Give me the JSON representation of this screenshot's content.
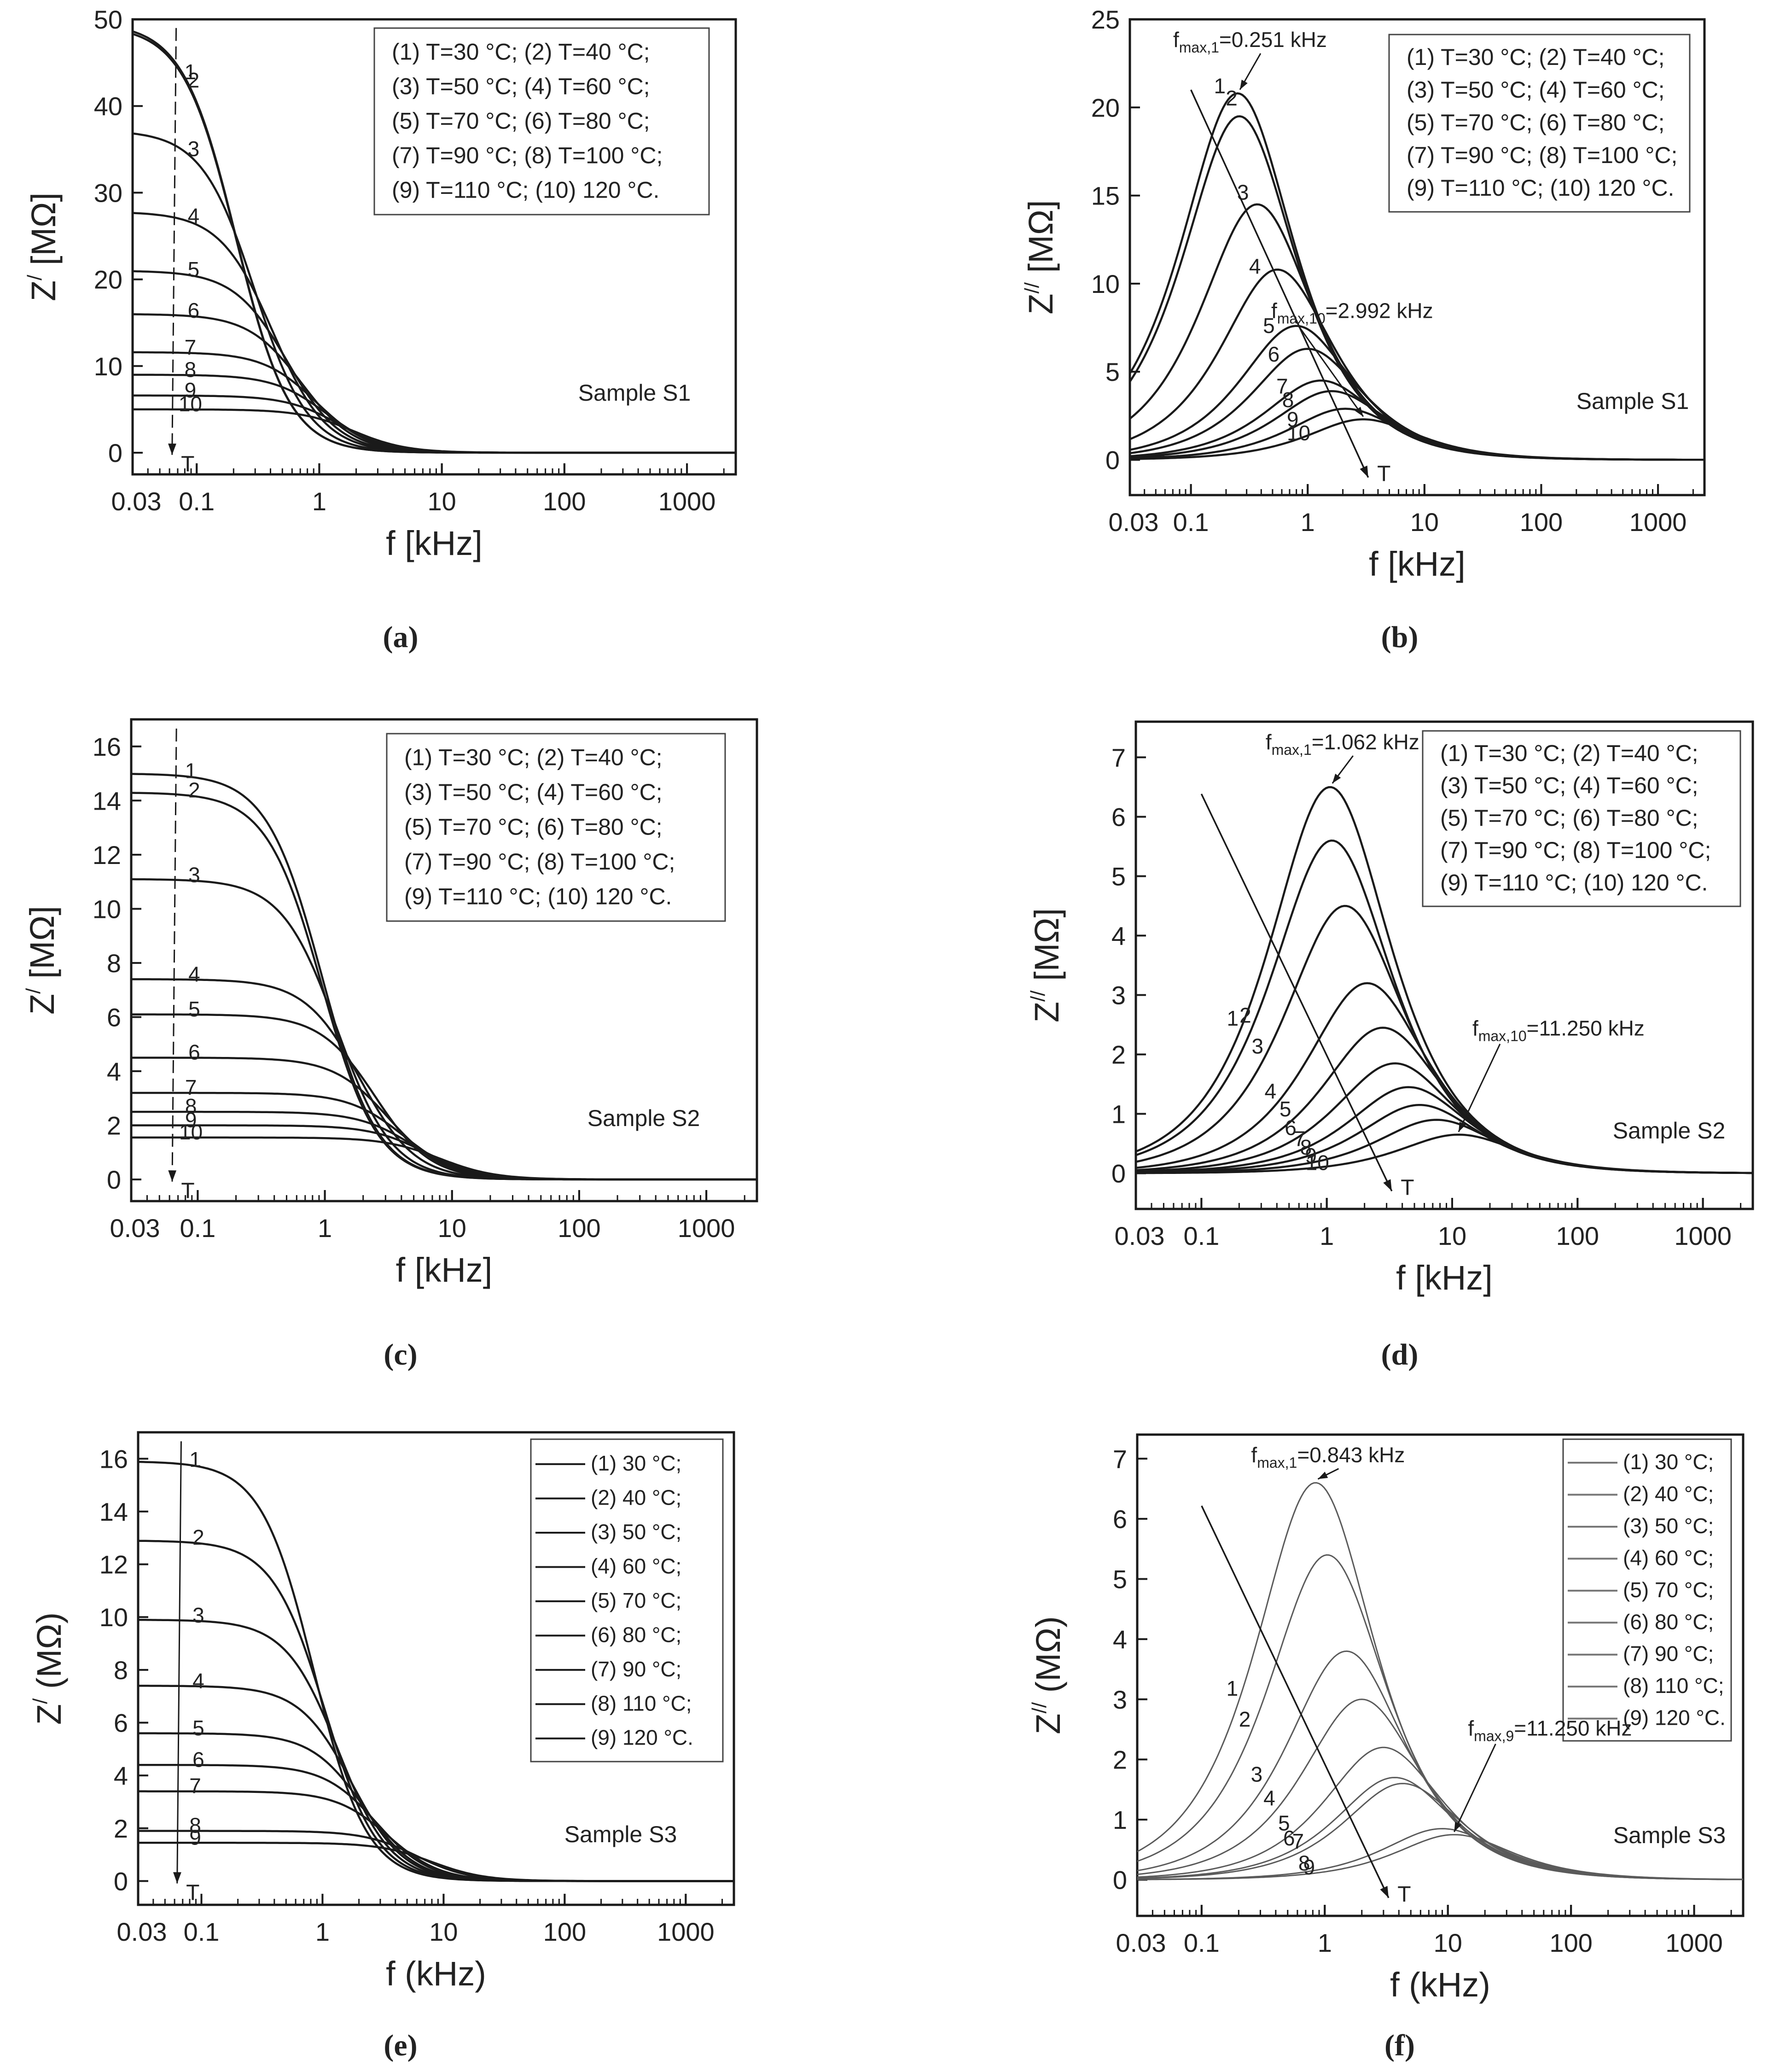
{
  "panels": [
    {
      "id": "a",
      "caption": "(a)",
      "ylabel_main": "Z",
      "ylabel_sup": "/",
      "ylabel_unit": " [MΩ]",
      "xlabel": "f [kHz]",
      "ylim": [
        -2.5,
        50
      ],
      "yticks": [
        "0",
        "10",
        "20",
        "30",
        "40",
        "50"
      ],
      "ytick_values": [
        0,
        10,
        20,
        30,
        40,
        50
      ],
      "xticks": [
        "0.03",
        "0.1",
        "1",
        "10",
        "100",
        "1000"
      ],
      "xtick_values": [
        0.03,
        0.1,
        1,
        10,
        100,
        1000
      ],
      "xlim": [
        0.03,
        2500
      ],
      "sample_label": "Sample S1",
      "legend": [
        "(1) T=30 °C; (2) T=40 °C;",
        "(3) T=50 °C; (4) T=60 °C;",
        "(5) T=70 °C; (6) T=80 °C;",
        "(7) T=90 °C; (8) T=100 °C;",
        "(9) T=110 °C; (10) 120 °C."
      ],
      "curve_labels": [
        "1",
        "2",
        "3",
        "4",
        "5",
        "6",
        "7",
        "8",
        "9",
        "10"
      ],
      "arrow_label": "T",
      "annotations": []
    },
    {
      "id": "b",
      "caption": "(b)",
      "ylabel_main": "Z",
      "ylabel_sup": "//",
      "ylabel_unit": " [MΩ]",
      "xlabel": "f [kHz]",
      "ylim": [
        -2,
        25
      ],
      "yticks": [
        "0",
        "5",
        "10",
        "15",
        "20",
        "25"
      ],
      "ytick_values": [
        0,
        5,
        10,
        15,
        20,
        25
      ],
      "xticks": [
        "0.03",
        "0.1",
        "1",
        "10",
        "100",
        "1000"
      ],
      "xtick_values": [
        0.03,
        0.1,
        1,
        10,
        100,
        1000
      ],
      "xlim": [
        0.03,
        2500
      ],
      "sample_label": "Sample S1",
      "legend": [
        "(1) T=30 °C; (2) T=40 °C;",
        "(3) T=50 °C; (4) T=60 °C;",
        "(5) T=70 °C; (6) T=80 °C;",
        "(7) T=90 °C; (8) T=100 °C;",
        "(9) T=110 °C; (10) 120 °C."
      ],
      "curve_labels": [
        "1",
        "2",
        "3",
        "4",
        "5",
        "6",
        "7",
        "8",
        "9",
        "10"
      ],
      "arrow_label": "T",
      "annotations": [
        {
          "main": "f",
          "sub": "max,1",
          "rest": "=0.251 kHz"
        },
        {
          "main": "f",
          "sub": "max,10",
          "rest": "=2.992 kHz"
        }
      ]
    },
    {
      "id": "c",
      "caption": "(c)",
      "ylabel_main": "Z",
      "ylabel_sup": "/",
      "ylabel_unit": " [MΩ]",
      "xlabel": "f [kHz]",
      "ylim": [
        -0.8,
        17
      ],
      "yticks": [
        "0",
        "2",
        "4",
        "6",
        "8",
        "10",
        "12",
        "14",
        "16"
      ],
      "ytick_values": [
        0,
        2,
        4,
        6,
        8,
        10,
        12,
        14,
        16
      ],
      "xticks": [
        "0.03",
        "0.1",
        "1",
        "10",
        "100",
        "1000"
      ],
      "xtick_values": [
        0.03,
        0.1,
        1,
        10,
        100,
        1000
      ],
      "xlim": [
        0.03,
        2500
      ],
      "sample_label": "Sample S2",
      "legend": [
        "(1) T=30 °C; (2) T=40 °C;",
        "(3) T=50 °C; (4) T=60 °C;",
        "(5) T=70 °C; (6) T=80 °C;",
        "(7) T=90 °C; (8) T=100 °C;",
        "(9) T=110 °C; (10) 120 °C."
      ],
      "curve_labels": [
        "1",
        "2",
        "3",
        "4",
        "5",
        "6",
        "7",
        "8",
        "9",
        "10"
      ],
      "arrow_label": "T",
      "annotations": []
    },
    {
      "id": "d",
      "caption": "(d)",
      "ylabel_main": "Z",
      "ylabel_sup": "//",
      "ylabel_unit": " [MΩ]",
      "xlabel": "f [kHz]",
      "ylim": [
        -0.6,
        7.6
      ],
      "yticks": [
        "0",
        "1",
        "2",
        "3",
        "4",
        "5",
        "6",
        "7"
      ],
      "ytick_values": [
        0,
        1,
        2,
        3,
        4,
        5,
        6,
        7
      ],
      "xticks": [
        "0.03",
        "0.1",
        "1",
        "10",
        "100",
        "1000"
      ],
      "xtick_values": [
        0.03,
        0.1,
        1,
        10,
        100,
        1000
      ],
      "xlim": [
        0.03,
        2500
      ],
      "sample_label": "Sample S2",
      "legend": [
        "(1) T=30 °C; (2) T=40 °C;",
        "(3) T=50 °C; (4) T=60 °C;",
        "(5) T=70 °C; (6) T=80 °C;",
        "(7) T=90 °C; (8) T=100 °C;",
        "(9) T=110 °C; (10) 120 °C."
      ],
      "curve_labels": [
        "1",
        "2",
        "3",
        "4",
        "5",
        "6",
        "7",
        "8",
        "9",
        "10"
      ],
      "arrow_label": "T",
      "annotations": [
        {
          "main": "f",
          "sub": "max,1",
          "rest": "=1.062 kHz"
        },
        {
          "main": "f",
          "sub": "max,10",
          "rest": "=11.250 kHz"
        }
      ]
    },
    {
      "id": "e",
      "caption": "(e)",
      "ylabel_main": "Z",
      "ylabel_sup": "/",
      "ylabel_unit": " (MΩ)",
      "xlabel": "f (kHz)",
      "ylim": [
        -0.9,
        17
      ],
      "yticks": [
        "0",
        "2",
        "4",
        "6",
        "8",
        "10",
        "12",
        "14",
        "16"
      ],
      "ytick_values": [
        0,
        2,
        4,
        6,
        8,
        10,
        12,
        14,
        16
      ],
      "xticks": [
        "0.03",
        "0.1",
        "1",
        "10",
        "100",
        "1000"
      ],
      "xtick_values": [
        0.03,
        0.1,
        1,
        10,
        100,
        1000
      ],
      "xlim": [
        0.03,
        2500
      ],
      "sample_label": "Sample S3",
      "legend": [
        "(1) 30 °C;",
        "(2) 40 °C;",
        "(3) 50 °C;",
        "(4) 60 °C;",
        "(5) 70 °C;",
        "(6) 80 °C;",
        "(7) 90 °C;",
        "(8) 110 °C;",
        "(9) 120 °C."
      ],
      "curve_labels": [
        "1",
        "2",
        "3",
        "4",
        "5",
        "6",
        "7",
        "8",
        "9"
      ],
      "arrow_label": "T",
      "annotations": []
    },
    {
      "id": "f",
      "caption": "(f)",
      "ylabel_main": "Z",
      "ylabel_sup": "//",
      "ylabel_unit": " (MΩ)",
      "xlabel": "f (kHz)",
      "ylim": [
        -0.6,
        7.4
      ],
      "yticks": [
        "0",
        "1",
        "2",
        "3",
        "4",
        "5",
        "6",
        "7"
      ],
      "ytick_values": [
        0,
        1,
        2,
        3,
        4,
        5,
        6,
        7
      ],
      "xticks": [
        "0.03",
        "0.1",
        "1",
        "10",
        "100",
        "1000"
      ],
      "xtick_values": [
        0.03,
        0.1,
        1,
        10,
        100,
        1000
      ],
      "xlim": [
        0.03,
        2500
      ],
      "sample_label": "Sample S3",
      "legend": [
        "(1) 30 °C;",
        "(2) 40 °C;",
        "(3) 50 °C;",
        "(4) 60 °C;",
        "(5) 70 °C;",
        "(6) 80 °C;",
        "(7) 90 °C;",
        "(8) 110 °C;",
        "(9) 120 °C."
      ],
      "curve_labels": [
        "1",
        "2",
        "3",
        "4",
        "5",
        "6",
        "7",
        "8",
        "9"
      ],
      "arrow_label": "T",
      "annotations": [
        {
          "main": "f",
          "sub": "max,1",
          "rest": "=0.843 kHz"
        },
        {
          "main": "f",
          "sub": "max,9",
          "rest": "=11.250 kHz"
        }
      ]
    }
  ],
  "chart_data": [
    {
      "panel": "a",
      "type": "line",
      "xscale": "log",
      "xlim": [
        0.03,
        2500
      ],
      "ylim": [
        -2.5,
        50
      ],
      "xlabel": "f [kHz]",
      "ylabel": "Z/ [MΩ]",
      "curve_form": "Debye relaxation: Z'(f) = Z0 / (1 + (f/fc)^2)",
      "series": [
        {
          "name": "(1) T=30 °C",
          "z0": 49.6,
          "fc": 0.21
        },
        {
          "name": "(2) T=40 °C",
          "z0": 49.3,
          "fc": 0.21
        },
        {
          "name": "(3) T=50 °C",
          "z0": 37.2,
          "fc": 0.3
        },
        {
          "name": "(4) T=60 °C",
          "z0": 27.8,
          "fc": 0.42
        },
        {
          "name": "(5) T=70 °C",
          "z0": 21.0,
          "fc": 0.55
        },
        {
          "name": "(6) T=80 °C",
          "z0": 16.0,
          "fc": 0.72
        },
        {
          "name": "(7) T=90 °C",
          "z0": 11.6,
          "fc": 0.95
        },
        {
          "name": "(8) T=100 °C",
          "z0": 9.0,
          "fc": 1.15
        },
        {
          "name": "(9) T=110 °C",
          "z0": 6.6,
          "fc": 1.45
        },
        {
          "name": "(10) 120 °C",
          "z0": 5.0,
          "fc": 1.9
        }
      ]
    },
    {
      "panel": "b",
      "type": "line",
      "xscale": "log",
      "xlim": [
        0.03,
        2500
      ],
      "ylim": [
        -2,
        25
      ],
      "xlabel": "f [kHz]",
      "ylabel": "Z// [MΩ]",
      "curve_form": "Debye peak: Z''(f) = 2·Zmax·(f/fmax) / (1 + (f/fmax)^2)",
      "series": [
        {
          "name": "(1) T=30 °C",
          "peak": 20.8,
          "fmax": 0.251
        },
        {
          "name": "(2) T=40 °C",
          "peak": 19.5,
          "fmax": 0.26
        },
        {
          "name": "(3) T=50 °C",
          "peak": 14.5,
          "fmax": 0.37
        },
        {
          "name": "(4) T=60 °C",
          "peak": 10.8,
          "fmax": 0.55
        },
        {
          "name": "(5) T=70 °C",
          "peak": 7.6,
          "fmax": 0.8
        },
        {
          "name": "(6) T=80 °C",
          "peak": 6.3,
          "fmax": 1.0
        },
        {
          "name": "(7) T=90 °C",
          "peak": 4.5,
          "fmax": 1.3
        },
        {
          "name": "(8) T=100 °C",
          "peak": 3.9,
          "fmax": 1.6
        },
        {
          "name": "(9) T=110 °C",
          "peak": 2.9,
          "fmax": 2.1
        },
        {
          "name": "(10) 120 °C",
          "peak": 2.3,
          "fmax": 2.992
        }
      ]
    },
    {
      "panel": "c",
      "type": "line",
      "xscale": "log",
      "xlim": [
        0.03,
        2500
      ],
      "ylim": [
        -0.8,
        17
      ],
      "xlabel": "f [kHz]",
      "ylabel": "Z/ [MΩ]",
      "curve_form": "Debye relaxation: Z'(f) = Z0 / (1 + (f/fc)^2)",
      "series": [
        {
          "name": "(1) T=30 °C",
          "z0": 15.0,
          "fc": 0.95
        },
        {
          "name": "(2) T=40 °C",
          "z0": 14.3,
          "fc": 0.95
        },
        {
          "name": "(3) T=50 °C",
          "z0": 11.1,
          "fc": 1.25
        },
        {
          "name": "(4) T=60 °C",
          "z0": 7.4,
          "fc": 1.9
        },
        {
          "name": "(5) T=70 °C",
          "z0": 6.1,
          "fc": 2.5
        },
        {
          "name": "(6) T=80 °C",
          "z0": 4.5,
          "fc": 3.2
        },
        {
          "name": "(7) T=90 °C",
          "z0": 3.2,
          "fc": 4.2
        },
        {
          "name": "(8) T=100 °C",
          "z0": 2.5,
          "fc": 5.0
        },
        {
          "name": "(9) T=110 °C",
          "z0": 2.0,
          "fc": 6.2
        },
        {
          "name": "(10) 120 °C",
          "z0": 1.55,
          "fc": 8.0
        }
      ]
    },
    {
      "panel": "d",
      "type": "line",
      "xscale": "log",
      "xlim": [
        0.03,
        2500
      ],
      "ylim": [
        -0.6,
        7.6
      ],
      "xlabel": "f [kHz]",
      "ylabel": "Z// [MΩ]",
      "curve_form": "Debye peak: Z''(f) = 2·Zmax·(f/fmax) / (1 + (f/fmax)^2)",
      "series": [
        {
          "name": "(1) T=30 °C",
          "peak": 6.5,
          "fmax": 1.062
        },
        {
          "name": "(2) T=40 °C",
          "peak": 5.6,
          "fmax": 1.1
        },
        {
          "name": "(3) T=50 °C",
          "peak": 4.5,
          "fmax": 1.4
        },
        {
          "name": "(4) T=60 °C",
          "peak": 3.2,
          "fmax": 2.1
        },
        {
          "name": "(5) T=70 °C",
          "peak": 2.45,
          "fmax": 2.8
        },
        {
          "name": "(6) T=80 °C",
          "peak": 1.85,
          "fmax": 3.5
        },
        {
          "name": "(7) T=90 °C",
          "peak": 1.45,
          "fmax": 4.5
        },
        {
          "name": "(8) T=100 °C",
          "peak": 1.15,
          "fmax": 5.5
        },
        {
          "name": "(9) T=110 °C",
          "peak": 0.9,
          "fmax": 7.5
        },
        {
          "name": "(10) 120 °C",
          "peak": 0.65,
          "fmax": 11.25
        }
      ]
    },
    {
      "panel": "e",
      "type": "line",
      "xscale": "log",
      "xlim": [
        0.03,
        2500
      ],
      "ylim": [
        -0.9,
        17
      ],
      "xlabel": "f (kHz)",
      "ylabel": "Z/ (MΩ)",
      "curve_form": "Debye relaxation: Z'(f) = Z0 / (1 + (f/fc)^2)",
      "series": [
        {
          "name": "(1) 30 °C",
          "z0": 15.9,
          "fc": 0.85
        },
        {
          "name": "(2) 40 °C",
          "z0": 12.9,
          "fc": 1.05
        },
        {
          "name": "(3) 50 °C",
          "z0": 9.9,
          "fc": 1.35
        },
        {
          "name": "(4) 60 °C",
          "z0": 7.4,
          "fc": 1.75
        },
        {
          "name": "(5) 70 °C",
          "z0": 5.6,
          "fc": 2.2
        },
        {
          "name": "(6) 80 °C",
          "z0": 4.4,
          "fc": 2.8
        },
        {
          "name": "(7) 90 °C",
          "z0": 3.4,
          "fc": 3.5
        },
        {
          "name": "(8) 110 °C",
          "z0": 1.9,
          "fc": 6.0
        },
        {
          "name": "(9) 120 °C",
          "z0": 1.45,
          "fc": 8.0
        }
      ]
    },
    {
      "panel": "f",
      "type": "line",
      "xscale": "log",
      "xlim": [
        0.03,
        2500
      ],
      "ylim": [
        -0.6,
        7.4
      ],
      "xlabel": "f (kHz)",
      "ylabel": "Z// (MΩ)",
      "curve_form": "Debye peak: Z''(f) = 2·Zmax·(f/fmax) / (1 + (f/fmax)^2)",
      "series": [
        {
          "name": "(1) 30 °C",
          "peak": 6.6,
          "fmax": 0.843
        },
        {
          "name": "(2) 40 °C",
          "peak": 5.4,
          "fmax": 1.05
        },
        {
          "name": "(3) 50 °C",
          "peak": 3.8,
          "fmax": 1.5
        },
        {
          "name": "(4) 60 °C",
          "peak": 3.0,
          "fmax": 2.0
        },
        {
          "name": "(5) 70 °C",
          "peak": 2.2,
          "fmax": 3.0
        },
        {
          "name": "(6) 80 °C",
          "peak": 1.7,
          "fmax": 3.7
        },
        {
          "name": "(7) 90 °C",
          "peak": 1.6,
          "fmax": 4.3
        },
        {
          "name": "(8) 110 °C",
          "peak": 0.85,
          "fmax": 9.0
        },
        {
          "name": "(9) 120 °C",
          "peak": 0.75,
          "fmax": 11.25
        }
      ]
    }
  ]
}
